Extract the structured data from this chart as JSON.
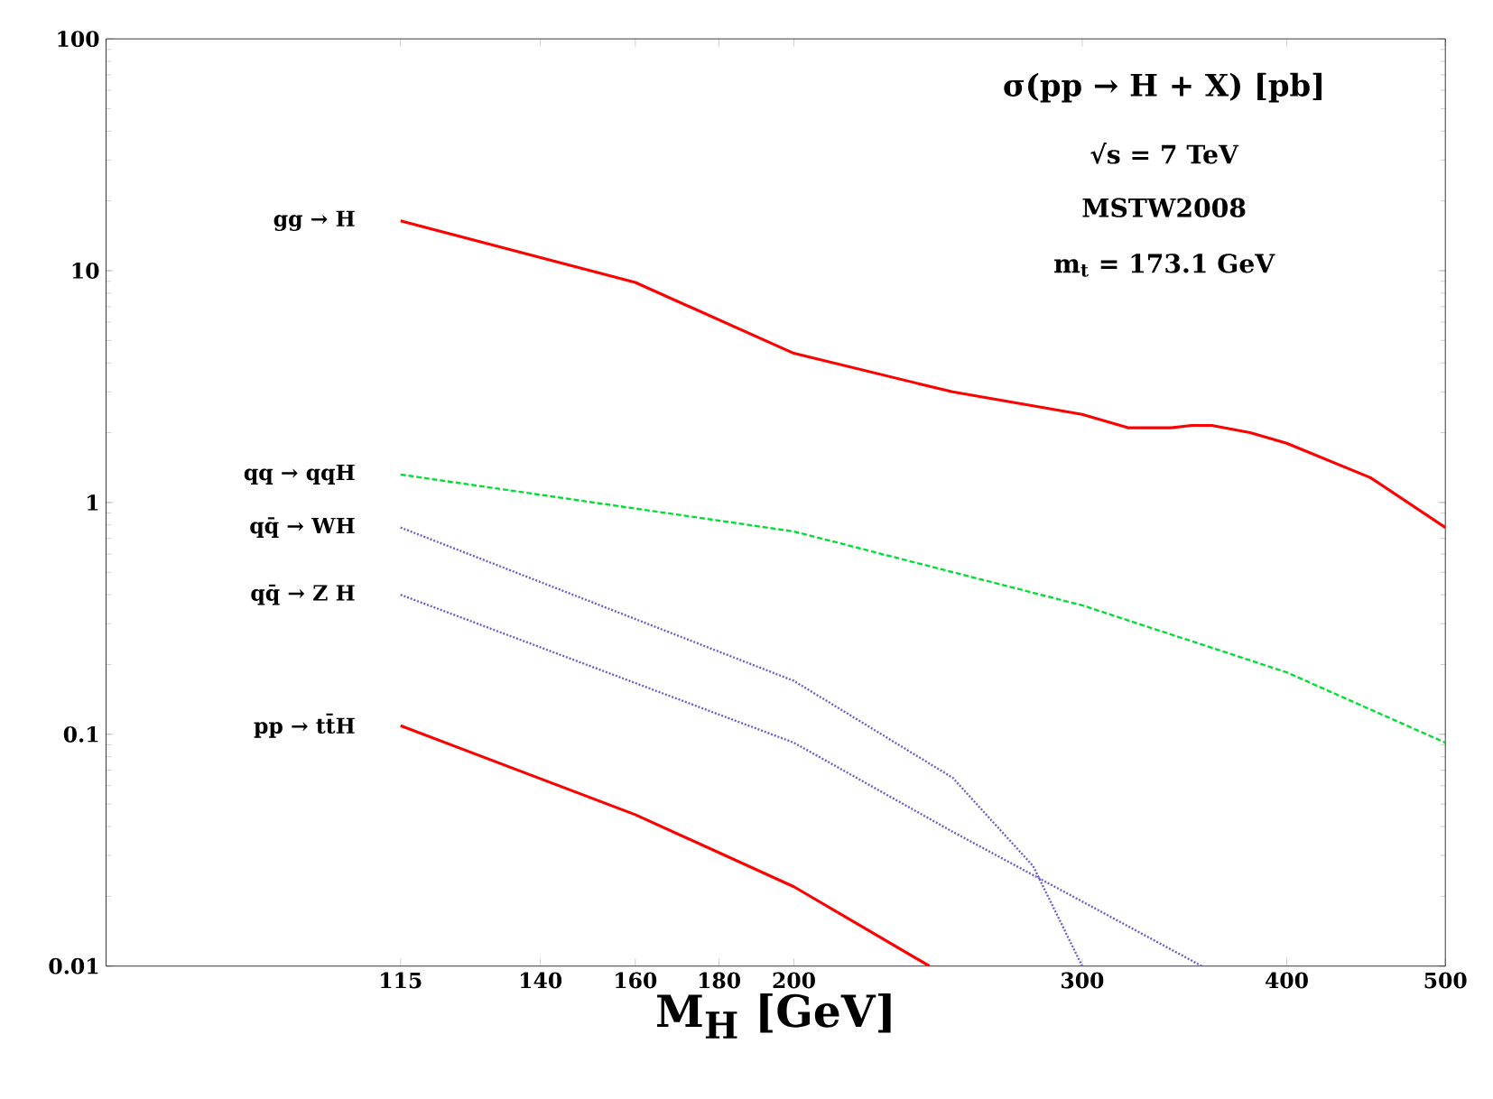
{
  "chart_data": {
    "type": "line",
    "title": "σ(pp → H + X) [pb]",
    "annotations": [
      "√s = 7 TeV",
      "MSTW2008",
      "m$_{t}$ = 173.1 GeV"
    ],
    "xlabel": "M$_{H}$ [GeV]",
    "log": "xy",
    "marker": "none",
    "xlim": [
      76,
      500
    ],
    "ylim": [
      0.01,
      100
    ],
    "xticks": [
      115,
      140,
      160,
      180,
      200,
      300,
      400,
      500
    ],
    "yticks": [
      0.01,
      0.1,
      1,
      10,
      100
    ],
    "series": [
      {
        "name": "gg → H",
        "color": "#ff0000",
        "line_style": "solid",
        "x": [
          115,
          160,
          200,
          250,
          300,
          320,
          340,
          350,
          360,
          380,
          400,
          450,
          500
        ],
        "values": [
          16.4,
          8.9,
          4.4,
          3.0,
          2.4,
          2.1,
          2.1,
          2.15,
          2.15,
          2.0,
          1.8,
          1.28,
          0.78
        ]
      },
      {
        "name": "qq → qqH",
        "color": "#00dd33",
        "line_style": "dashed",
        "x": [
          115,
          200,
          300,
          400,
          500
        ],
        "values": [
          1.32,
          0.75,
          0.36,
          0.185,
          0.092
        ]
      },
      {
        "name": "qq̄ → WH",
        "color": "#6a5acd",
        "line_style": "dotted",
        "x": [
          115,
          200,
          250,
          280,
          300
        ],
        "values": [
          0.78,
          0.17,
          0.065,
          0.027,
          0.01
        ]
      },
      {
        "name": "qq̄ → Z H",
        "color": "#6a5acd",
        "line_style": "dotted",
        "x": [
          115,
          200,
          250,
          300,
          355
        ],
        "values": [
          0.4,
          0.092,
          0.038,
          0.019,
          0.01
        ]
      },
      {
        "name": "pp → tt̄H",
        "color": "#ff0000",
        "line_style": "solid",
        "x": [
          115,
          160,
          200,
          242
        ],
        "values": [
          0.109,
          0.045,
          0.022,
          0.01
        ]
      }
    ]
  }
}
